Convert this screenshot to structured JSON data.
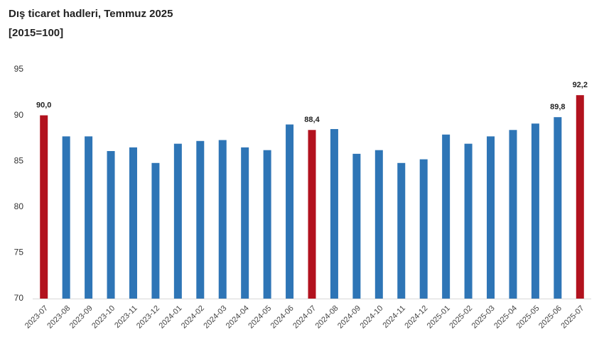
{
  "chart_data": {
    "type": "bar",
    "title": "Dış ticaret hadleri, Temmuz 2025",
    "subtitle": "[2015=100]",
    "categories": [
      "2023-07",
      "2023-08",
      "2023-09",
      "2023-10",
      "2023-11",
      "2023-12",
      "2024-01",
      "2024-02",
      "2024-03",
      "2024-04",
      "2024-05",
      "2024-06",
      "2024-07",
      "2024-08",
      "2024-09",
      "2024-10",
      "2024-11",
      "2024-12",
      "2025-01",
      "2025-02",
      "2025-03",
      "2025-04",
      "2025-05",
      "2025-06",
      "2025-07"
    ],
    "values": [
      90.0,
      87.7,
      87.7,
      86.1,
      86.5,
      84.8,
      86.9,
      87.2,
      87.3,
      86.5,
      86.2,
      89.0,
      88.4,
      88.5,
      85.8,
      86.2,
      84.8,
      85.2,
      87.9,
      86.9,
      87.7,
      88.4,
      89.1,
      89.8,
      92.2
    ],
    "value_labels": [
      "90,0",
      null,
      null,
      null,
      null,
      null,
      null,
      null,
      null,
      null,
      null,
      null,
      "88,4",
      null,
      null,
      null,
      null,
      null,
      null,
      null,
      null,
      null,
      null,
      "89,8",
      "92,2"
    ],
    "colors": [
      "#b2121e",
      "#2e75b6",
      "#2e75b6",
      "#2e75b6",
      "#2e75b6",
      "#2e75b6",
      "#2e75b6",
      "#2e75b6",
      "#2e75b6",
      "#2e75b6",
      "#2e75b6",
      "#2e75b6",
      "#b2121e",
      "#2e75b6",
      "#2e75b6",
      "#2e75b6",
      "#2e75b6",
      "#2e75b6",
      "#2e75b6",
      "#2e75b6",
      "#2e75b6",
      "#2e75b6",
      "#2e75b6",
      "#2e75b6",
      "#b2121e"
    ],
    "ylim": [
      70,
      95
    ],
    "yticks": [
      70,
      75,
      80,
      85,
      90,
      95
    ],
    "grid": false
  }
}
